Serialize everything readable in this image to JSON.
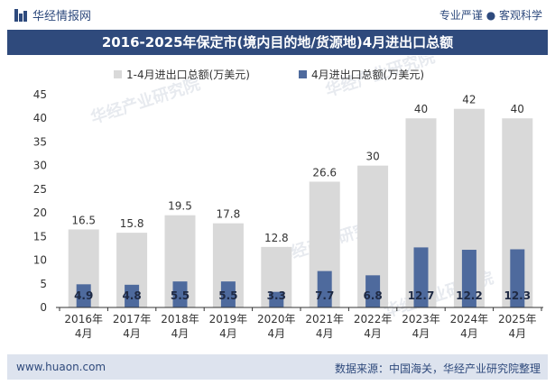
{
  "header": {
    "brand": "华经情报网",
    "slogan": "专业严谨 ● 客观科学"
  },
  "chart_data": {
    "type": "bar",
    "title": "2016-2025年保定市(境内目的地/货源地)4月进出口总额",
    "categories": [
      "2016年\n4月",
      "2017年\n4月",
      "2018年\n4月",
      "2019年\n4月",
      "2020年\n4月",
      "2021年\n4月",
      "2022年\n4月",
      "2023年\n4月",
      "2024年\n4月",
      "2025年\n4月"
    ],
    "series": [
      {
        "name": "1-4月进出口总额(万美元)",
        "values": [
          16.5,
          15.8,
          19.5,
          17.8,
          12.8,
          26.6,
          30,
          40,
          42,
          40
        ],
        "color": "#d9d9d9"
      },
      {
        "name": "4月进出口总额(万美元)",
        "values": [
          4.9,
          4.8,
          5.5,
          5.5,
          3.3,
          7.7,
          6.8,
          12.7,
          12.2,
          12.3
        ],
        "color": "#4e6a9d"
      }
    ],
    "ylim": [
      0,
      45
    ],
    "yticks": [
      0,
      5,
      10,
      15,
      20,
      25,
      30,
      35,
      40,
      45
    ],
    "legend_position": "top-left",
    "grid": false
  },
  "watermark": "华经产业研究院",
  "footer": {
    "website": "www.huaon.com",
    "source": "数据来源：中国海关，华经产业研究院整理"
  }
}
